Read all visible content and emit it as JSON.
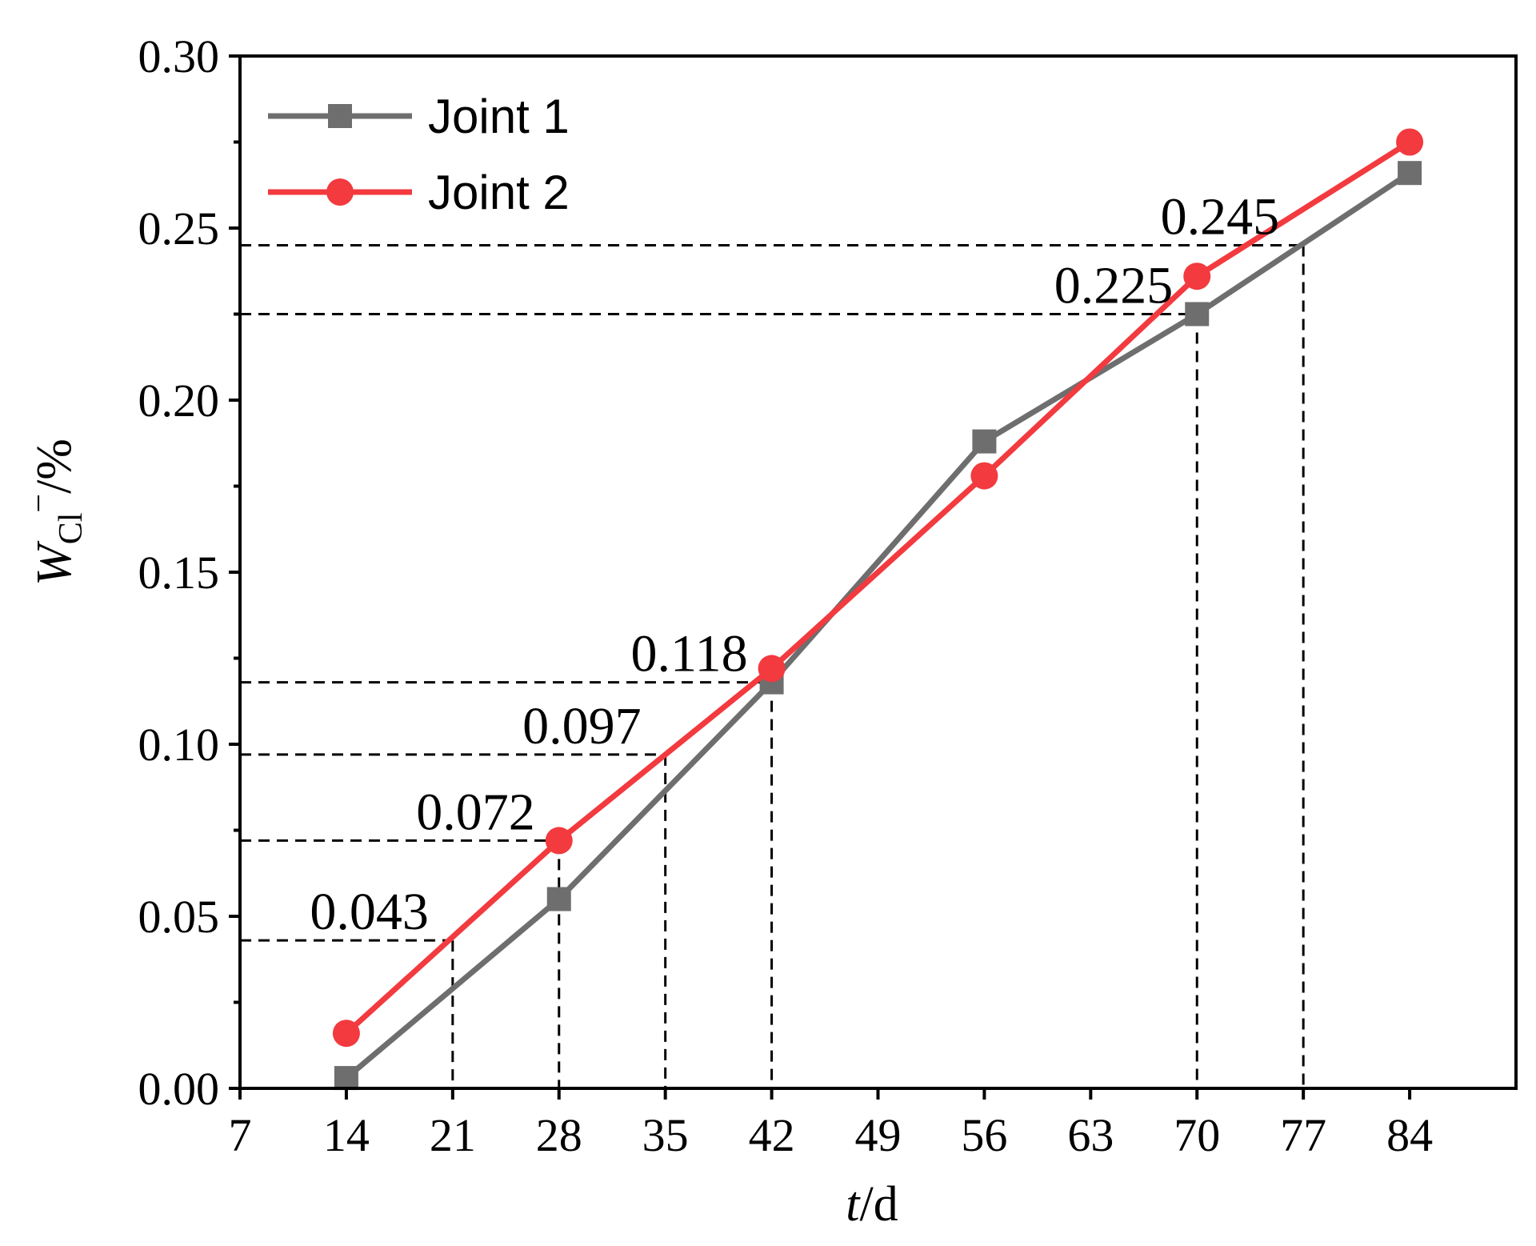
{
  "chart_data": {
    "type": "line",
    "xlabel_italic": "t",
    "xlabel_rest": "/d",
    "ylabel_main": "W",
    "ylabel_sub": "Cl",
    "ylabel_sup": "−",
    "ylabel_rest": "/%",
    "xlim": [
      7,
      91
    ],
    "ylim": [
      0,
      0.3
    ],
    "x_ticks": [
      7,
      14,
      21,
      28,
      35,
      42,
      49,
      56,
      63,
      70,
      77,
      84
    ],
    "x_tick_labels": [
      "7",
      "14",
      "21",
      "28",
      "35",
      "42",
      "49",
      "56",
      "63",
      "70",
      "77",
      "84"
    ],
    "y_ticks": [
      0,
      0.05,
      0.1,
      0.15,
      0.2,
      0.25,
      0.3
    ],
    "y_tick_labels": [
      "0.00",
      "0.05",
      "0.10",
      "0.15",
      "0.20",
      "0.25",
      "0.30"
    ],
    "y_minor_ticks": [
      0.025,
      0.075,
      0.125,
      0.175,
      0.225,
      0.275
    ],
    "legend_position": "top-left",
    "series": [
      {
        "name": "Joint 1",
        "color": "#6e6e6e",
        "marker": "square",
        "x": [
          14,
          28,
          42,
          56,
          70,
          84
        ],
        "y": [
          0.003,
          0.055,
          0.118,
          0.188,
          0.225,
          0.266
        ]
      },
      {
        "name": "Joint 2",
        "color": "#f23a3f",
        "marker": "circle",
        "x": [
          14,
          28,
          42,
          56,
          70,
          84
        ],
        "y": [
          0.016,
          0.072,
          0.122,
          0.178,
          0.236,
          0.275
        ]
      }
    ],
    "guides": [
      {
        "x": 21,
        "y": 0.043,
        "label": "0.043"
      },
      {
        "x": 28,
        "y": 0.072,
        "label": "0.072"
      },
      {
        "x": 35,
        "y": 0.097,
        "label": "0.097"
      },
      {
        "x": 42,
        "y": 0.118,
        "label": "0.118"
      },
      {
        "x": 70,
        "y": 0.225,
        "label": "0.225"
      },
      {
        "x": 77,
        "y": 0.245,
        "label": "0.245"
      }
    ]
  }
}
